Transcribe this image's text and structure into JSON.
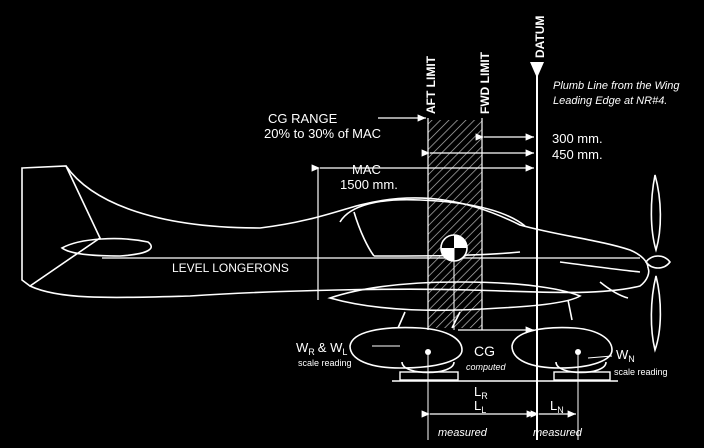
{
  "labels": {
    "datum": "DATUM",
    "aft_limit": "AFT LIMIT",
    "fwd_limit": "FWD LIMIT",
    "plumb_line_1": "Plumb Line from the Wing",
    "plumb_line_2": "Leading Edge at NR#4.",
    "cg_range_1": "CG RANGE",
    "cg_range_2": "20% to 30% of MAC",
    "fwd_distance": "300 mm.",
    "aft_distance": "450 mm.",
    "mac": "MAC",
    "mac_length": "1500 mm.",
    "level_longerons": "LEVEL LONGERONS",
    "wr_w": "W",
    "wr_sub": "R",
    "wr_and": "& W",
    "wl_sub": "L",
    "main_scale": "scale reading",
    "cg": "CG",
    "cg_computed": "computed",
    "wn_w": "W",
    "wn_sub": "N",
    "nose_scale": "scale reading",
    "lr_l": "L",
    "lr_sub": "R",
    "ll_l": "L",
    "ll_sub": "L",
    "ln_l": "L",
    "ln_sub": "N",
    "measured_main": "measured",
    "measured_nose": "measured"
  }
}
